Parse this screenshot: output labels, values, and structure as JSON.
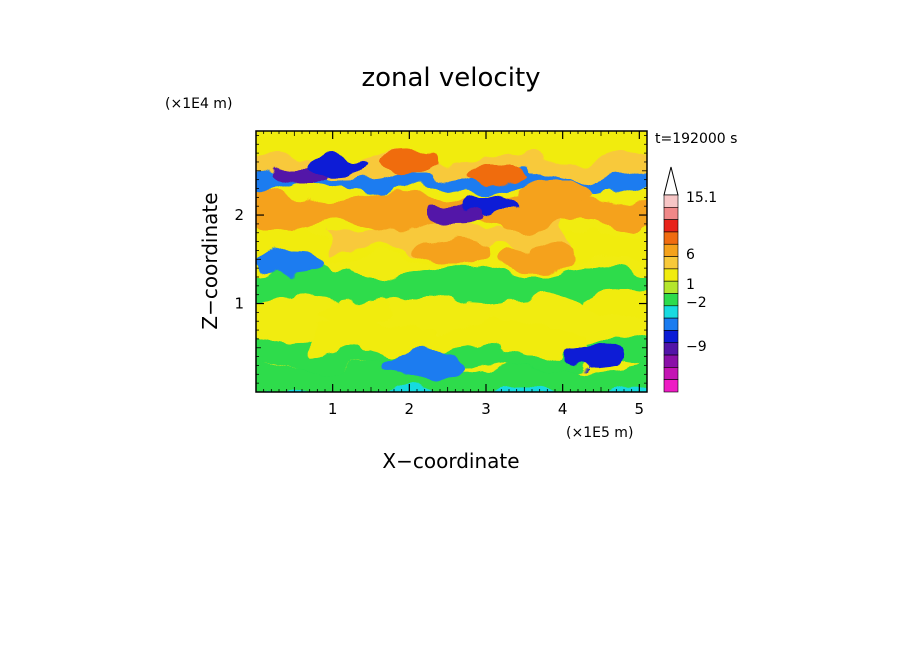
{
  "chart_data": {
    "type": "heatmap",
    "title": "zonal velocity",
    "xlabel": "X−coordinate",
    "ylabel": "Z−coordinate",
    "x_multiplier": "(×1E5 m)",
    "y_multiplier": "(×1E4 m)",
    "time_label": "t=192000 s",
    "xlim": [
      0,
      5.1
    ],
    "ylim": [
      0,
      2.95
    ],
    "x_ticks": [
      1,
      2,
      3,
      4,
      5
    ],
    "y_ticks": [
      1,
      2
    ],
    "x_tick_labels": [
      "1",
      "2",
      "3",
      "4",
      "5"
    ],
    "y_tick_labels": [
      "1",
      "2"
    ],
    "colorbar": {
      "labeled_levels": [
        "15.1",
        "6",
        "1",
        "−2",
        "−9"
      ],
      "colors": [
        "#f7c6c6",
        "#f08888",
        "#e8231a",
        "#f06c10",
        "#f5a21b",
        "#f8c93a",
        "#f1ec10",
        "#b4e62c",
        "#2ddc4c",
        "#18dbe0",
        "#1a7cf0",
        "#0b1cd6",
        "#5214a8",
        "#8a10a8",
        "#c414b4",
        "#ee1cc4"
      ]
    },
    "bands": [
      {
        "z": 0.05,
        "x": [
          0.0,
          5.1
        ],
        "value": -2
      },
      {
        "z": 0.15,
        "x": [
          0.0,
          5.1
        ],
        "value": 0
      },
      {
        "z": 0.45,
        "x": [
          0.0,
          5.1
        ],
        "value": 0
      },
      {
        "z": 0.6,
        "x": [
          1.0,
          4.0
        ],
        "value": 1
      },
      {
        "z": 1.2,
        "x": [
          0.0,
          5.1
        ],
        "value": 0
      },
      {
        "z": 1.65,
        "x": [
          0.0,
          5.1
        ],
        "value": 1
      },
      {
        "z": 1.75,
        "x": [
          1.2,
          3.8
        ],
        "value": 2
      },
      {
        "z": 2.05,
        "x": [
          0.0,
          5.1
        ],
        "value": 3
      },
      {
        "z": 2.45,
        "x": [
          0.0,
          5.1
        ],
        "value": -4
      },
      {
        "z": 2.6,
        "x": [
          0.0,
          5.1
        ],
        "value": 2
      },
      {
        "z": 2.8,
        "x": [
          0.0,
          5.1
        ],
        "value": 1
      }
    ],
    "features": [
      {
        "x": 0.6,
        "z": 2.45,
        "value": -9
      },
      {
        "x": 1.05,
        "z": 2.55,
        "value": -6
      },
      {
        "x": 2.6,
        "z": 2.0,
        "value": -9
      },
      {
        "x": 3.05,
        "z": 2.1,
        "value": -6
      },
      {
        "x": 2.0,
        "z": 2.6,
        "value": 6
      },
      {
        "x": 3.1,
        "z": 2.45,
        "value": 6
      },
      {
        "x": 0.45,
        "z": 2.05,
        "value": 3
      },
      {
        "x": 3.9,
        "z": 2.25,
        "value": 3
      },
      {
        "x": 0.45,
        "z": 1.45,
        "value": -4
      },
      {
        "x": 4.4,
        "z": 0.4,
        "value": -6
      },
      {
        "x": 2.2,
        "z": 0.3,
        "value": -4
      },
      {
        "x": 2.6,
        "z": 1.6,
        "value": 4
      },
      {
        "x": 3.7,
        "z": 1.5,
        "value": 4
      },
      {
        "x": 1.3,
        "z": 0.9,
        "value": 1
      },
      {
        "x": 4.8,
        "z": 1.0,
        "value": 1
      }
    ]
  }
}
